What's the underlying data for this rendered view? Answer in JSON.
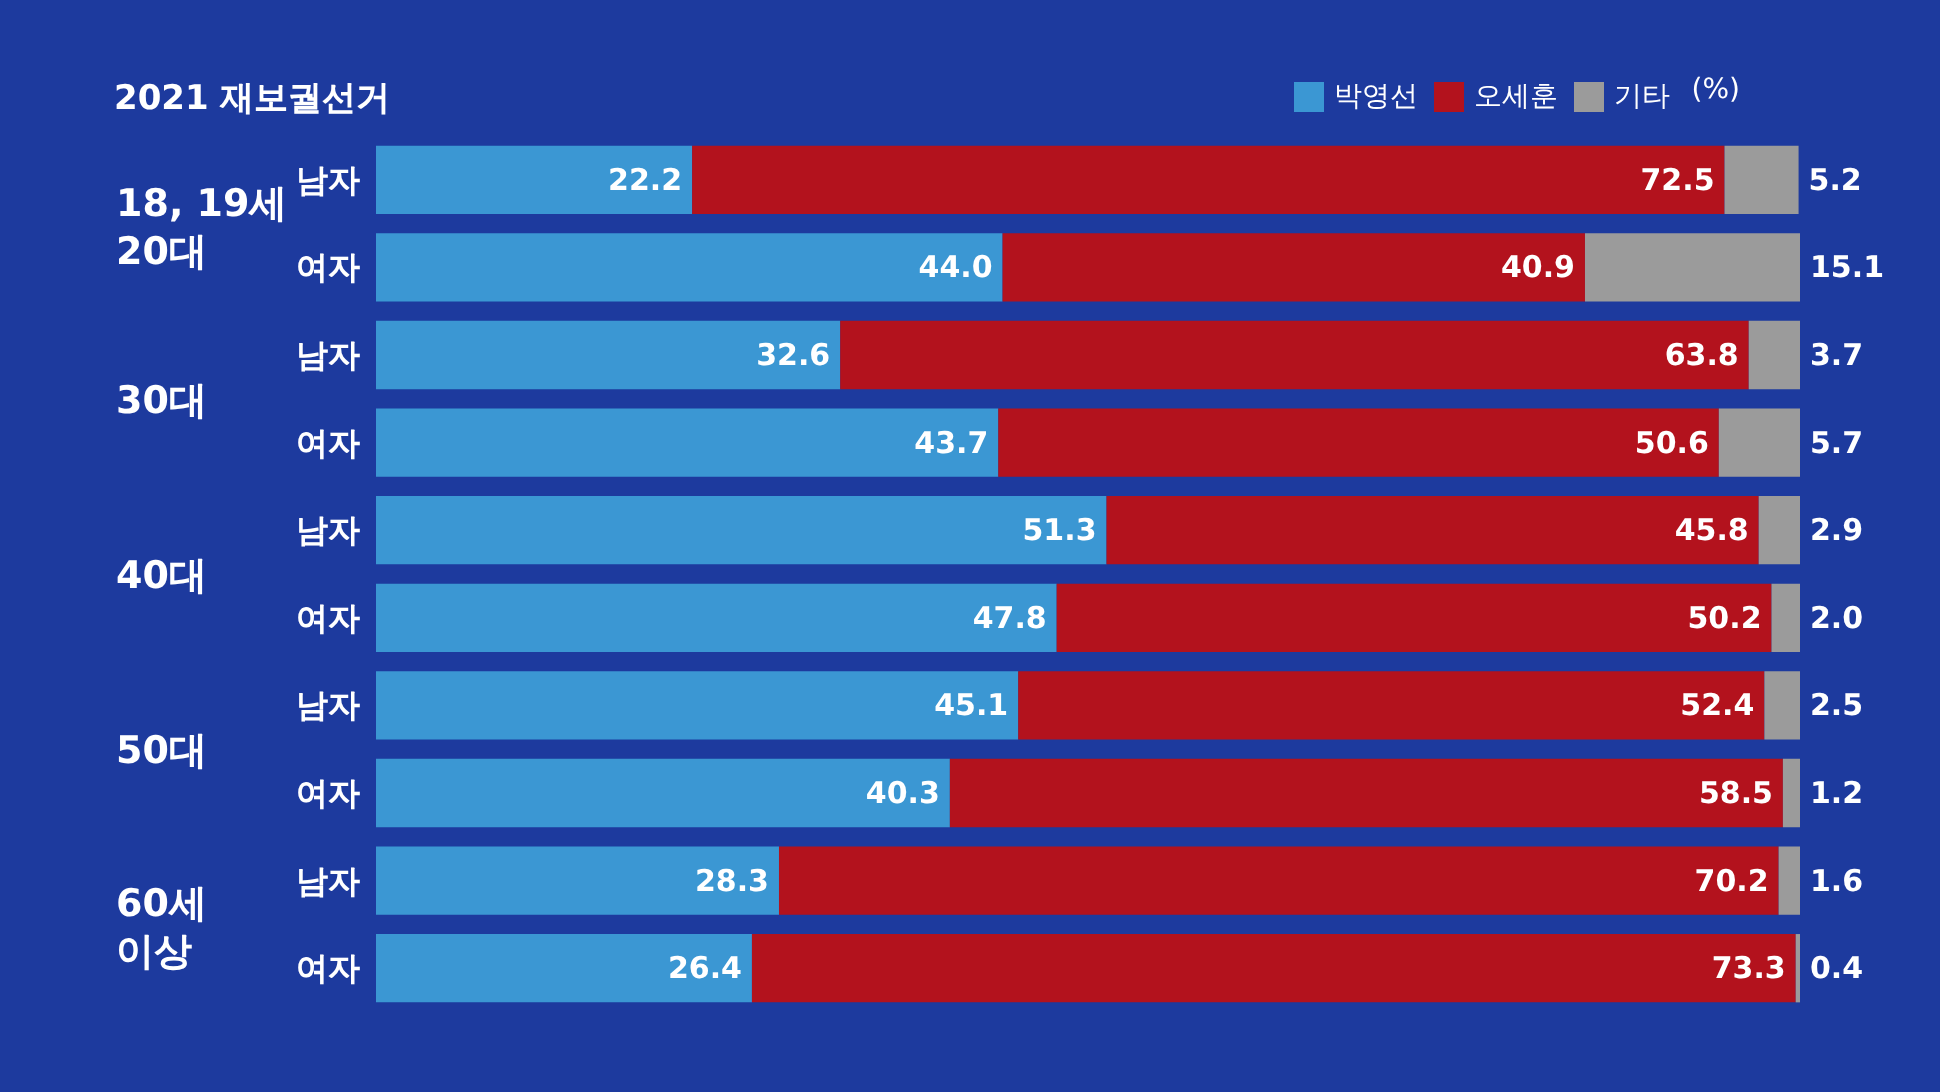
{
  "chart_data": {
    "type": "bar",
    "orientation": "horizontal",
    "stacked": true,
    "title": "2021 재보궐선거",
    "categories": [
      "남자",
      "여자",
      "남자",
      "여자",
      "남자",
      "여자",
      "남자",
      "여자",
      "남자",
      "여자"
    ],
    "series": [
      {
        "name": "박영선",
        "color": "#3b97d3",
        "values": [
          22.2,
          44.0,
          32.6,
          43.7,
          51.3,
          47.8,
          45.1,
          40.3,
          28.3,
          26.4
        ],
        "value_labels": [
          "22.2",
          "44.0",
          "32.6",
          "43.7",
          "51.3",
          "47.8",
          "45.1",
          "40.3",
          "28.3",
          "26.4"
        ]
      },
      {
        "name": "오세훈",
        "color": "#b3121d",
        "values": [
          72.5,
          40.9,
          63.8,
          50.6,
          45.8,
          50.2,
          52.4,
          58.5,
          70.2,
          73.3
        ],
        "value_labels": [
          "72.5",
          "40.9",
          "63.8",
          "50.6",
          "45.8",
          "50.2",
          "52.4",
          "58.5",
          "70.2",
          "73.3"
        ]
      },
      {
        "name": "기타",
        "color": "#9b9b9b",
        "values": [
          5.2,
          15.1,
          3.7,
          5.7,
          2.9,
          2.0,
          2.5,
          1.2,
          1.6,
          0.4
        ],
        "value_labels": [
          "5.2",
          "15.1",
          "3.7",
          "5.7",
          "2.9",
          "2.0",
          "2.5",
          "1.2",
          "1.6",
          "0.4"
        ]
      }
    ],
    "annotations": [
      "18, 19세\n20대",
      "30대",
      "40대",
      "50대",
      "60세\n이상",
      "(%)"
    ],
    "xlim": [
      0,
      100
    ],
    "legend": "top right",
    "tick_labels": "y"
  }
}
